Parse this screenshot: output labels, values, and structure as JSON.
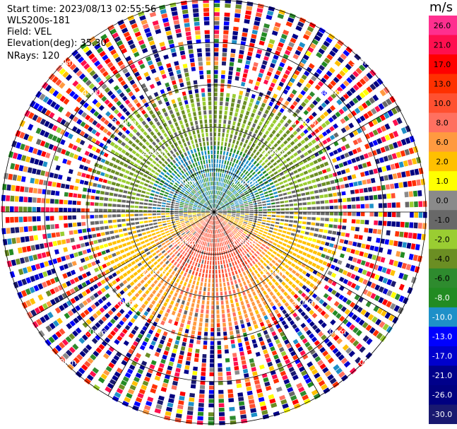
{
  "header": {
    "start_time": "Start time: 2023/08/13 02:55:56",
    "site": "WLS200s-181",
    "field": "Field: VEL",
    "elevation": "Elevation(deg): 35.30",
    "nrays": "NRays: 120"
  },
  "colorbar": {
    "unit": "m/s",
    "ticks": [
      "26.0",
      "21.0",
      "17.0",
      "13.0",
      "10.0",
      "8.0",
      "6.0",
      "2.0",
      "1.0",
      "0.0",
      "-1.0",
      "-2.0",
      "-4.0",
      "-6.0",
      "-8.0",
      "-10.0",
      "-13.0",
      "-17.0",
      "-21.0",
      "-26.0",
      "-30.0"
    ],
    "colors": [
      "#ff2f8f",
      "#ff0f4f",
      "#ff0000",
      "#ff3000",
      "#ff5030",
      "#ff7060",
      "#ff9a40",
      "#ffc000",
      "#ffff00",
      "#8a8a8a",
      "#686868",
      "#9acd32",
      "#6b8e23",
      "#2e8b2e",
      "#228b22",
      "#1e90c8",
      "#0000ff",
      "#0000cd",
      "#00008b",
      "#000080",
      "#191970"
    ]
  },
  "chart_data": {
    "type": "heatmap",
    "projection": "polar PPI",
    "field": "VEL",
    "n_rays": 120,
    "range_rings_km": [
      1.0,
      2.0,
      3.0,
      4.0,
      5.0
    ],
    "range_ring_labels": [
      "1.0km",
      "2.0km",
      "3.0km",
      "4.0km",
      "5.0km"
    ],
    "valid_max_range_km": 3.0,
    "value_range": [
      -30.0,
      26.0
    ],
    "pattern": {
      "description": "",
      "north_sector_velocity_ms": -2.0,
      "south_sector_velocity_ms": 6.0,
      "north_core_velocity_ms": -8.0,
      "south_core_velocity_ms": 10.0
    }
  }
}
